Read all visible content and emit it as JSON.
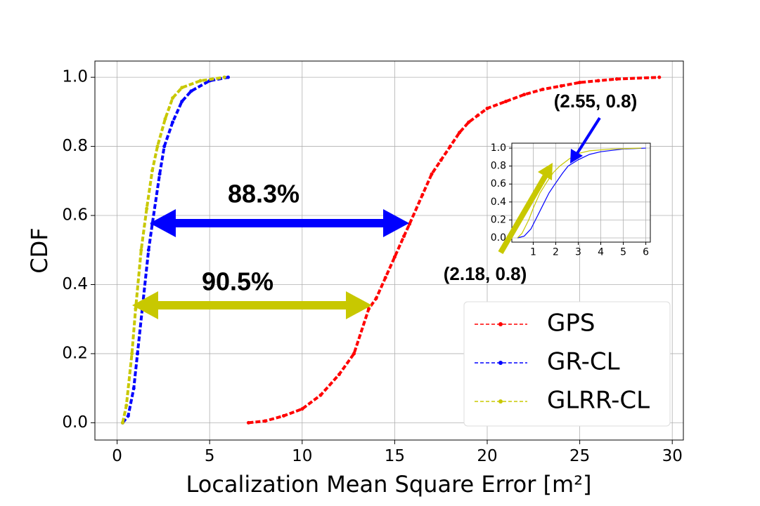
{
  "chart_data": [
    {
      "type": "line",
      "xlabel": "Localization Mean Square Error [m²]",
      "ylabel": "CDF",
      "xlim": [
        -1.2,
        30.6
      ],
      "ylim": [
        -0.05,
        1.047
      ],
      "xticks": [
        0,
        5,
        10,
        15,
        20,
        25,
        30
      ],
      "yticks": [
        {
          "value": 0,
          "label": "0.0"
        },
        0.2,
        0.4,
        0.6,
        0.8,
        {
          "value": 1,
          "label": "1.0"
        }
      ],
      "grid": true,
      "legend": "lower right",
      "annotations": [
        {
          "text": "88.3%",
          "color": "#1111ee"
        },
        {
          "text": "90.5%",
          "color": "#c8c800"
        },
        {
          "text": "(2.55, 0.8)",
          "color": "#1111ee"
        },
        {
          "text": "(2.18, 0.8)",
          "color": "#c8c800"
        }
      ],
      "series": [
        {
          "name": "GPS",
          "color": "#ff0000",
          "x": [
            7.1,
            8,
            9,
            10,
            11,
            12,
            12.8,
            13.6,
            14,
            14.5,
            15,
            15.5,
            15.8,
            16.5,
            17,
            17.5,
            18,
            18.5,
            19,
            19.5,
            20,
            21,
            22,
            23,
            24,
            25,
            26,
            27,
            29.3
          ],
          "values": [
            0,
            0.005,
            0.02,
            0.04,
            0.08,
            0.14,
            0.2,
            0.33,
            0.36,
            0.42,
            0.48,
            0.54,
            0.575,
            0.66,
            0.72,
            0.76,
            0.8,
            0.84,
            0.87,
            0.89,
            0.91,
            0.93,
            0.95,
            0.965,
            0.975,
            0.985,
            0.99,
            0.995,
            1.0
          ]
        },
        {
          "name": "GR-CL",
          "color": "#0000ff",
          "x": [
            0.3,
            0.6,
            0.9,
            1.1,
            1.4,
            1.7,
            1.9,
            2.3,
            2.55,
            3.0,
            3.5,
            4.0,
            5.0,
            6.0
          ],
          "values": [
            0,
            0.02,
            0.1,
            0.2,
            0.35,
            0.5,
            0.575,
            0.72,
            0.8,
            0.87,
            0.93,
            0.96,
            0.99,
            1.0
          ]
        },
        {
          "name": "GLRR-CL",
          "color": "#c8c800",
          "x": [
            0.3,
            0.5,
            0.8,
            1.0,
            1.3,
            1.6,
            1.9,
            2.18,
            2.6,
            3.0,
            3.5,
            4.5,
            5.8
          ],
          "values": [
            0,
            0.05,
            0.2,
            0.33,
            0.5,
            0.62,
            0.73,
            0.8,
            0.88,
            0.94,
            0.97,
            0.99,
            1.0
          ]
        }
      ]
    },
    {
      "type": "line",
      "xlim": [
        0.05,
        6.2
      ],
      "ylim": [
        -0.047,
        1.055
      ],
      "xticks": [
        1,
        2,
        3,
        4,
        5,
        6
      ],
      "yticks": [
        {
          "value": 0,
          "label": "0.0"
        },
        0.2,
        0.4,
        0.6,
        0.8,
        {
          "value": 1,
          "label": "1.0"
        }
      ],
      "grid": true,
      "series": [
        {
          "color": "#0000ff",
          "x": [
            0.3,
            0.6,
            0.9,
            1.1,
            1.4,
            1.7,
            1.9,
            2.3,
            2.55,
            3.0,
            3.5,
            4.0,
            5.0,
            6.0
          ],
          "values": [
            0,
            0.02,
            0.1,
            0.2,
            0.35,
            0.5,
            0.575,
            0.72,
            0.8,
            0.87,
            0.93,
            0.96,
            0.99,
            1.0
          ]
        },
        {
          "color": "#c8c800",
          "x": [
            0.3,
            0.5,
            0.8,
            1.0,
            1.3,
            1.6,
            1.9,
            2.18,
            2.6,
            3.0,
            3.5,
            4.5,
            5.8
          ],
          "values": [
            0,
            0.05,
            0.2,
            0.33,
            0.5,
            0.62,
            0.73,
            0.8,
            0.88,
            0.94,
            0.97,
            0.99,
            1.0
          ]
        }
      ]
    }
  ]
}
